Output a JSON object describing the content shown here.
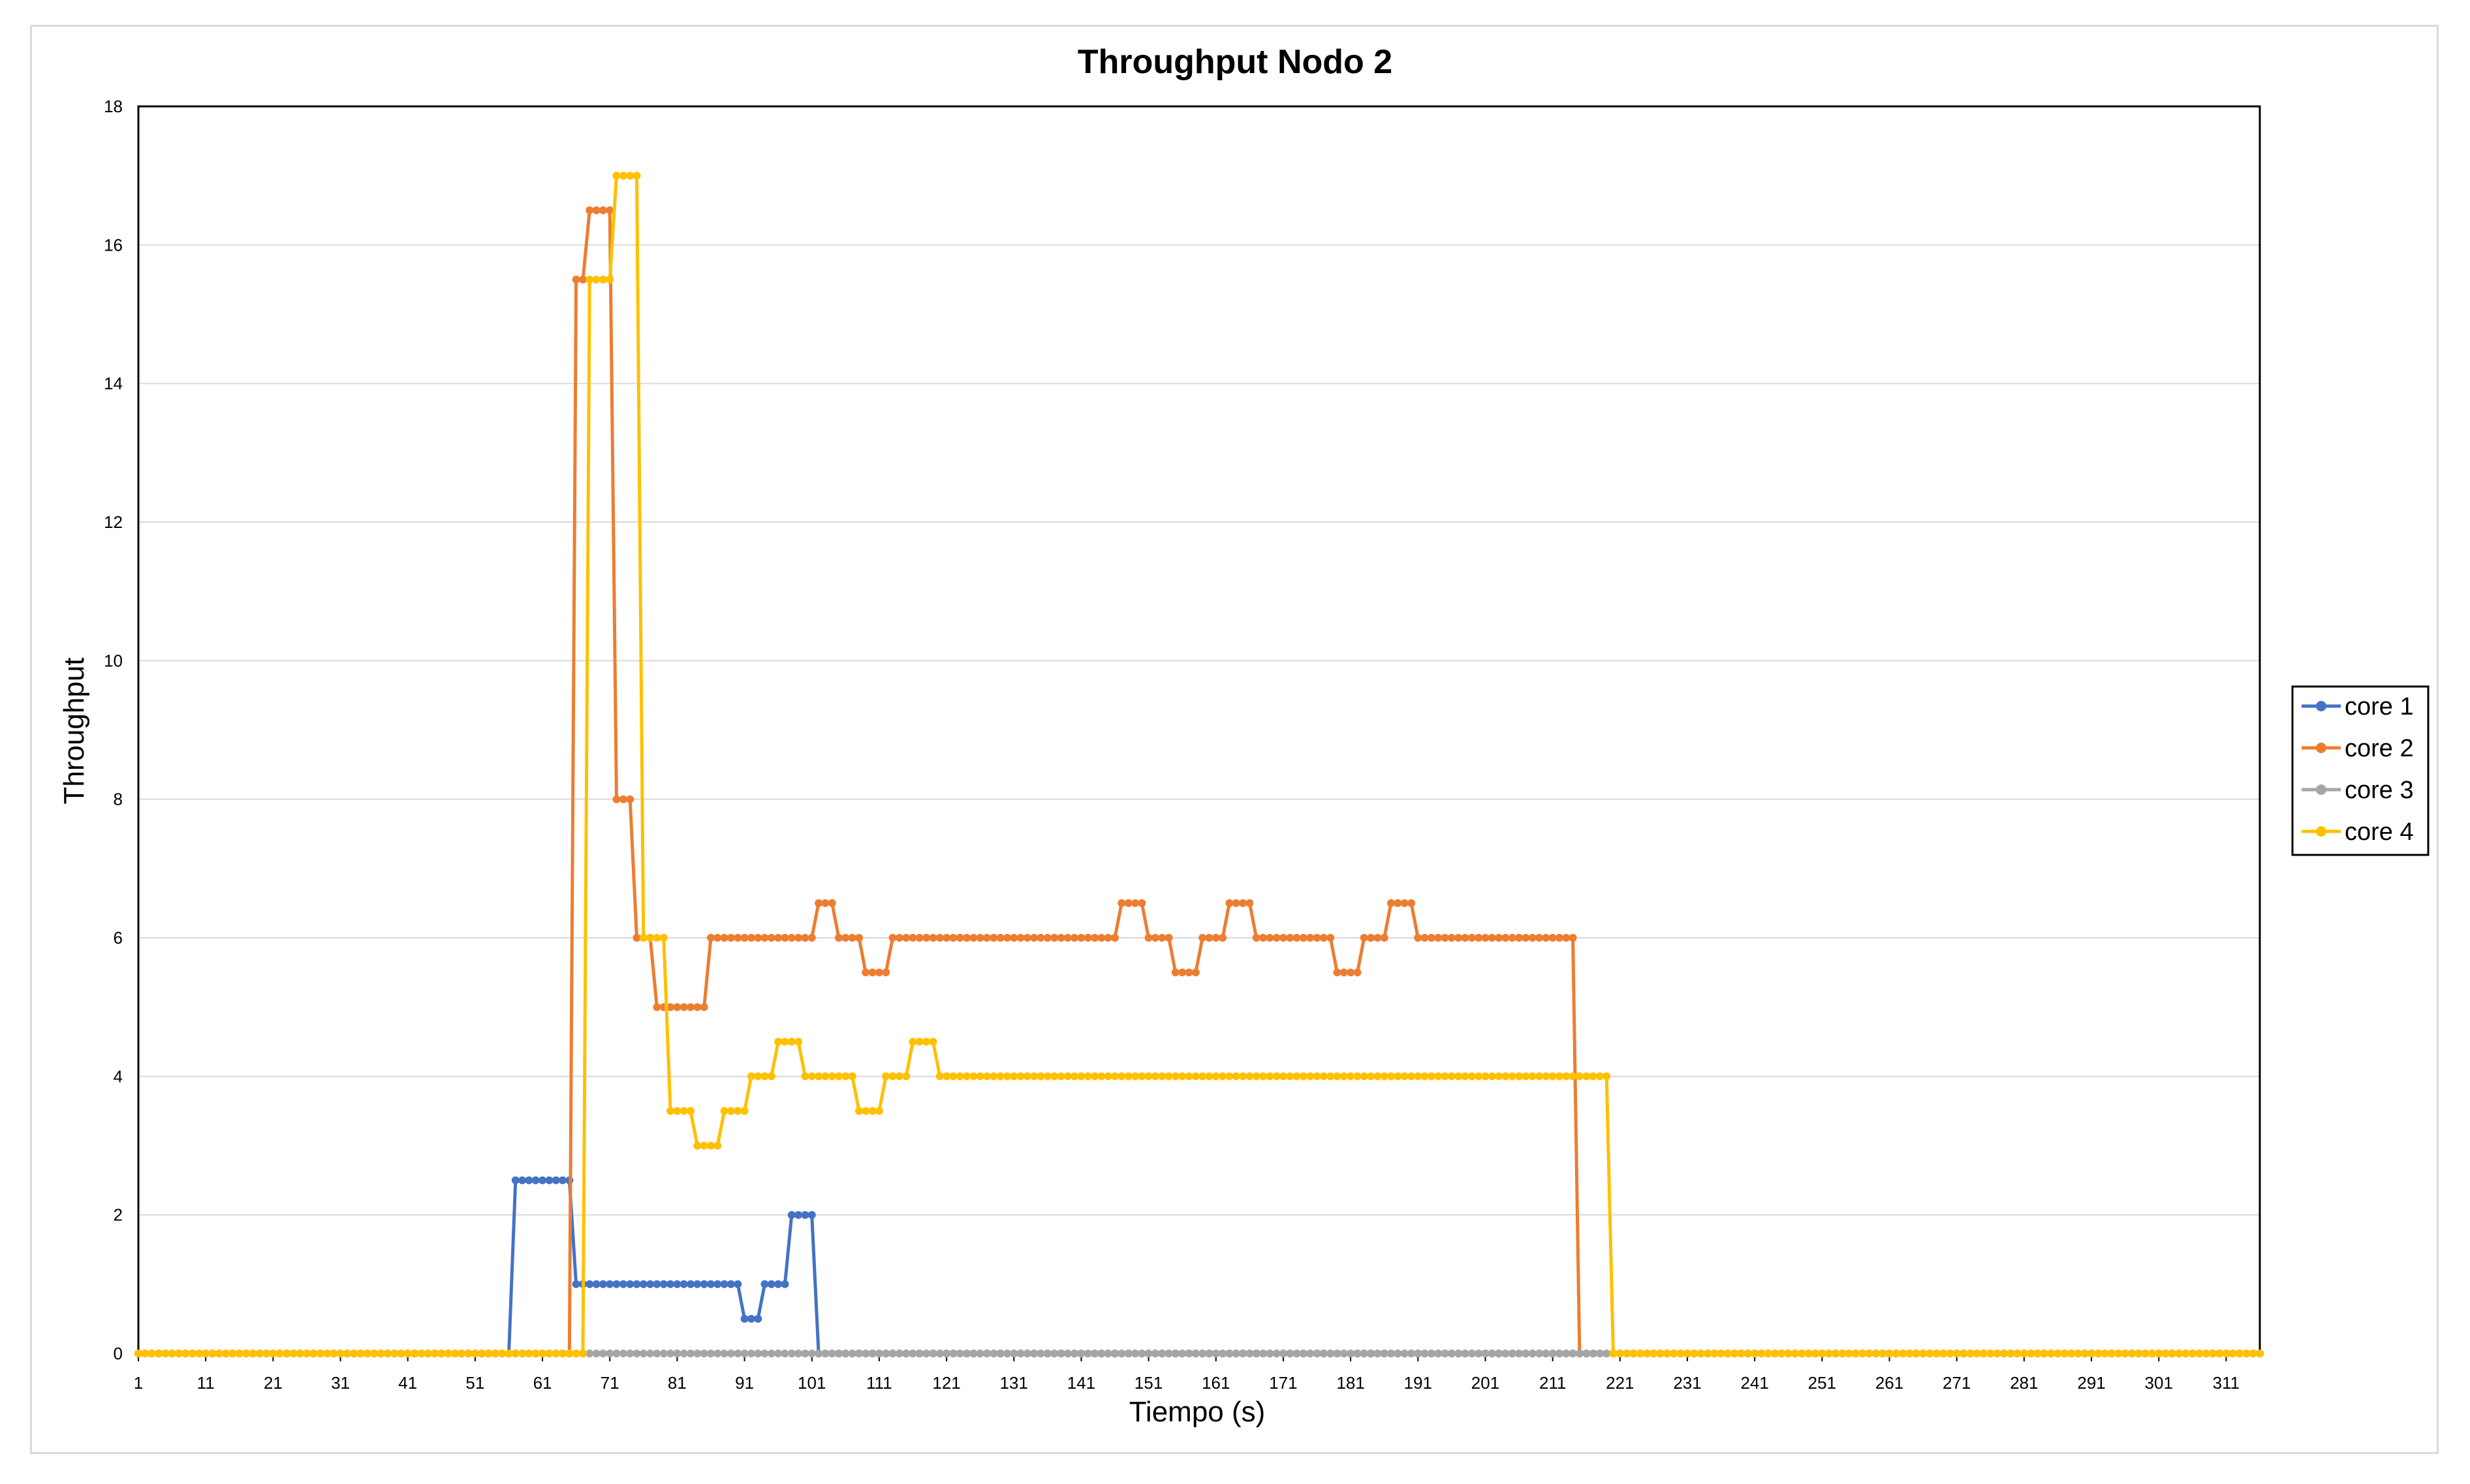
{
  "chart_data": {
    "type": "line",
    "title": "Throughput Nodo 2",
    "xlabel": "Tiempo (s)",
    "ylabel": "Throughput",
    "xlim": [
      1,
      316
    ],
    "ylim": [
      0,
      18
    ],
    "yticks": [
      0,
      2,
      4,
      6,
      8,
      10,
      12,
      14,
      16,
      18
    ],
    "xticks": [
      1,
      11,
      21,
      31,
      41,
      51,
      61,
      71,
      81,
      91,
      101,
      111,
      121,
      131,
      141,
      151,
      161,
      171,
      181,
      191,
      201,
      211,
      221,
      231,
      241,
      251,
      261,
      271,
      281,
      291,
      301,
      311
    ],
    "grid": true,
    "legend_position": "right",
    "series": [
      {
        "name": "core 1",
        "color": "#4472c4",
        "segments": [
          [
            1,
            56,
            0
          ],
          [
            57,
            61,
            2.5
          ],
          [
            62,
            65,
            2.5
          ],
          [
            66,
            90,
            1
          ],
          [
            91,
            93,
            0.5
          ],
          [
            94,
            97,
            1
          ],
          [
            98,
            101,
            2
          ],
          [
            102,
            316,
            0
          ]
        ]
      },
      {
        "name": "core 2",
        "color": "#ed7d31",
        "segments": [
          [
            1,
            65,
            0
          ],
          [
            66,
            67,
            15.5
          ],
          [
            68,
            69,
            16.5
          ],
          [
            70,
            71,
            16.5
          ],
          [
            72,
            74,
            8
          ],
          [
            75,
            77,
            6
          ],
          [
            78,
            85,
            5
          ],
          [
            86,
            101,
            6
          ],
          [
            102,
            104,
            6.5
          ],
          [
            105,
            108,
            6
          ],
          [
            109,
            112,
            5.5
          ],
          [
            113,
            146,
            6
          ],
          [
            147,
            150,
            6.5
          ],
          [
            151,
            154,
            6
          ],
          [
            155,
            158,
            5.5
          ],
          [
            159,
            162,
            6
          ],
          [
            163,
            166,
            6.5
          ],
          [
            167,
            178,
            6
          ],
          [
            179,
            182,
            5.5
          ],
          [
            183,
            186,
            6
          ],
          [
            187,
            190,
            6.5
          ],
          [
            191,
            214,
            6
          ],
          [
            215,
            316,
            0
          ]
        ]
      },
      {
        "name": "core 3",
        "color": "#a5a5a5",
        "segments": [
          [
            1,
            316,
            0
          ]
        ]
      },
      {
        "name": "core 4",
        "color": "#ffc000",
        "segments": [
          [
            1,
            67,
            0
          ],
          [
            68,
            71,
            15.5
          ],
          [
            72,
            75,
            17
          ],
          [
            76,
            79,
            6
          ],
          [
            80,
            83,
            3.5
          ],
          [
            84,
            87,
            3
          ],
          [
            88,
            91,
            3.5
          ],
          [
            92,
            95,
            4
          ],
          [
            96,
            99,
            4.5
          ],
          [
            100,
            107,
            4
          ],
          [
            108,
            111,
            3.5
          ],
          [
            112,
            115,
            4
          ],
          [
            116,
            119,
            4.5
          ],
          [
            120,
            219,
            4
          ],
          [
            220,
            316,
            0
          ]
        ]
      }
    ]
  }
}
